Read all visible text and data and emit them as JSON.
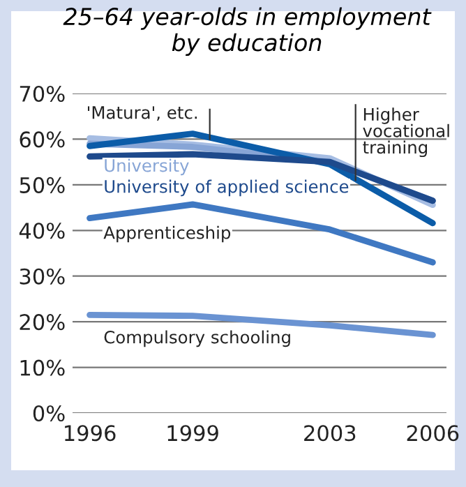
{
  "chart_data": {
    "type": "line",
    "title": "25–64 year-olds in employment\nby education",
    "x": [
      1996,
      1999,
      2003,
      2006
    ],
    "series": [
      {
        "name": "'Matura', etc.",
        "color": "#0b5ca8",
        "values": [
          58.5,
          61.2,
          54.5,
          41.6
        ]
      },
      {
        "name": "Higher\nvocational\ntraining",
        "color": "#a6bde3",
        "values": [
          60.2,
          58.8,
          55.8,
          45.6
        ]
      },
      {
        "name": "University of applied science",
        "color": "#1e4a8c",
        "values": [
          56.2,
          56.7,
          55,
          46.5
        ]
      },
      {
        "name": "University",
        "color": "#87a5d6",
        "values": [
          59,
          58.3,
          55,
          46.5
        ]
      },
      {
        "name": "Apprenticeship",
        "color": "#3f78c2",
        "values": [
          42.7,
          45.7,
          40.2,
          33.0
        ]
      },
      {
        "name": "Compulsory schooling",
        "color": "#6a93d2",
        "values": [
          21.5,
          21.3,
          19.2,
          17.1
        ]
      }
    ],
    "xlim": [
      1995.5,
      2006.4
    ],
    "xticks": [
      1996,
      1999,
      2003,
      2006
    ],
    "ylim": [
      0,
      70
    ],
    "yticks": [
      {
        "value": 0,
        "label": "0%"
      },
      {
        "value": 10,
        "label": "10%"
      },
      {
        "value": 20,
        "label": "20%"
      },
      {
        "value": 30,
        "label": "30%"
      },
      {
        "value": 40,
        "label": "40%"
      },
      {
        "value": 50,
        "label": "50%"
      },
      {
        "value": 60,
        "label": "60%"
      },
      {
        "value": 70,
        "label": "70%"
      }
    ],
    "grid": "y",
    "legend": false,
    "marker": "none",
    "line_style": "solid"
  }
}
